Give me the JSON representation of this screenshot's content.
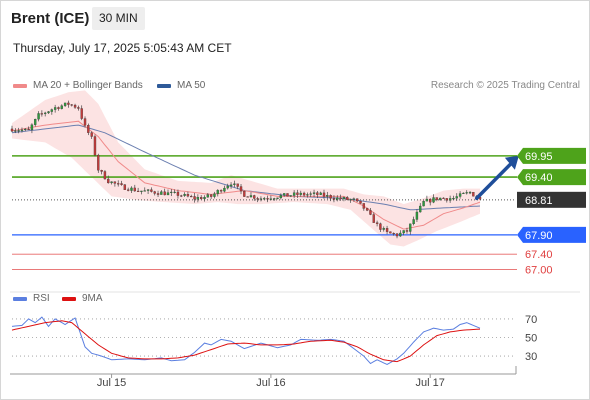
{
  "header": {
    "symbol": "Brent (ICE)",
    "timeframe": "30 MIN",
    "timestamp": "Thursday, July 17, 2025 5:05:43 AM CET"
  },
  "legend": [
    {
      "label": "MA 20 + Bollinger Bands",
      "color": "#f08a8a"
    },
    {
      "label": "MA 50",
      "color": "#2e5a99"
    }
  ],
  "credit": "Research © 2025 Trading Central",
  "chart_data": [
    {
      "type": "candlestick",
      "ylim": [
        66.6,
        71.4
      ],
      "x_ticks": [
        {
          "label": "Jul 15",
          "index": 30
        },
        {
          "label": "Jul 16",
          "index": 78
        },
        {
          "label": "Jul 17",
          "index": 126
        }
      ],
      "levels": [
        {
          "value": 69.95,
          "label": "69.95",
          "color": "#4ea31b",
          "kind": "resistance"
        },
        {
          "value": 69.4,
          "label": "69.40",
          "color": "#4ea31b",
          "kind": "resistance"
        },
        {
          "value": 68.81,
          "label": "68.81",
          "color": "#333333",
          "kind": "last"
        },
        {
          "value": 67.9,
          "label": "67.90",
          "color": "#2962ff",
          "kind": "support"
        },
        {
          "value": 67.4,
          "label": "67.40",
          "color": "#e04040",
          "kind": "support"
        },
        {
          "value": 67.0,
          "label": "67.00",
          "color": "#e04040",
          "kind": "support"
        }
      ],
      "arrow": {
        "from_index": 140,
        "from_value": 68.85,
        "to_index": 150,
        "to_value": 69.85,
        "color": "#1f4e9a"
      },
      "close_anchors": [
        [
          0,
          70.65
        ],
        [
          5,
          70.6
        ],
        [
          8,
          71.0
        ],
        [
          13,
          71.2
        ],
        [
          17,
          71.3
        ],
        [
          20,
          71.2
        ],
        [
          22,
          70.7
        ],
        [
          24,
          70.4
        ],
        [
          26,
          69.6
        ],
        [
          29,
          69.3
        ],
        [
          33,
          69.15
        ],
        [
          38,
          69.05
        ],
        [
          44,
          69.0
        ],
        [
          50,
          68.95
        ],
        [
          55,
          68.85
        ],
        [
          60,
          68.9
        ],
        [
          64,
          69.15
        ],
        [
          66,
          69.25
        ],
        [
          70,
          68.95
        ],
        [
          75,
          68.85
        ],
        [
          80,
          68.9
        ],
        [
          86,
          68.95
        ],
        [
          92,
          68.95
        ],
        [
          98,
          68.85
        ],
        [
          103,
          68.8
        ],
        [
          106,
          68.6
        ],
        [
          110,
          68.15
        ],
        [
          113,
          67.95
        ],
        [
          116,
          67.9
        ],
        [
          119,
          68.0
        ],
        [
          121,
          68.3
        ],
        [
          124,
          68.75
        ],
        [
          128,
          68.85
        ],
        [
          133,
          68.85
        ],
        [
          136,
          68.95
        ],
        [
          138,
          69.0
        ],
        [
          140,
          68.9
        ],
        [
          141,
          68.81
        ]
      ],
      "ma20_anchors": [
        [
          0,
          70.6
        ],
        [
          10,
          70.75
        ],
        [
          20,
          70.85
        ],
        [
          26,
          70.45
        ],
        [
          32,
          69.8
        ],
        [
          40,
          69.25
        ],
        [
          50,
          69.05
        ],
        [
          60,
          68.95
        ],
        [
          70,
          69.05
        ],
        [
          80,
          68.9
        ],
        [
          90,
          68.9
        ],
        [
          100,
          68.9
        ],
        [
          106,
          68.65
        ],
        [
          112,
          68.3
        ],
        [
          118,
          68.05
        ],
        [
          124,
          68.15
        ],
        [
          130,
          68.45
        ],
        [
          136,
          68.6
        ],
        [
          141,
          68.75
        ]
      ],
      "ma50_anchors": [
        [
          0,
          70.55
        ],
        [
          10,
          70.65
        ],
        [
          20,
          70.75
        ],
        [
          28,
          70.55
        ],
        [
          40,
          70.05
        ],
        [
          55,
          69.45
        ],
        [
          70,
          69.05
        ],
        [
          85,
          68.9
        ],
        [
          100,
          68.85
        ],
        [
          112,
          68.7
        ],
        [
          120,
          68.55
        ],
        [
          130,
          68.6
        ],
        [
          141,
          68.65
        ]
      ],
      "band_upper": [
        [
          0,
          70.8
        ],
        [
          10,
          71.4
        ],
        [
          17,
          71.6
        ],
        [
          22,
          71.65
        ],
        [
          26,
          71.3
        ],
        [
          32,
          70.3
        ],
        [
          40,
          69.6
        ],
        [
          50,
          69.3
        ],
        [
          60,
          69.25
        ],
        [
          66,
          69.45
        ],
        [
          72,
          69.3
        ],
        [
          80,
          69.1
        ],
        [
          90,
          69.1
        ],
        [
          100,
          69.1
        ],
        [
          106,
          68.95
        ],
        [
          112,
          68.9
        ],
        [
          118,
          68.7
        ],
        [
          124,
          68.85
        ],
        [
          130,
          69.05
        ],
        [
          136,
          69.1
        ],
        [
          141,
          69.1
        ]
      ],
      "band_lower": [
        [
          0,
          70.4
        ],
        [
          10,
          70.3
        ],
        [
          18,
          69.9
        ],
        [
          24,
          69.4
        ],
        [
          30,
          68.9
        ],
        [
          38,
          68.8
        ],
        [
          46,
          68.75
        ],
        [
          55,
          68.7
        ],
        [
          62,
          68.75
        ],
        [
          68,
          68.7
        ],
        [
          75,
          68.7
        ],
        [
          85,
          68.75
        ],
        [
          95,
          68.7
        ],
        [
          102,
          68.55
        ],
        [
          108,
          68.1
        ],
        [
          114,
          67.65
        ],
        [
          118,
          67.6
        ],
        [
          122,
          67.75
        ],
        [
          128,
          68.0
        ],
        [
          134,
          68.2
        ],
        [
          141,
          68.45
        ]
      ]
    },
    {
      "type": "line",
      "name": "RSI",
      "ylim": [
        15,
        85
      ],
      "y_ticks": [
        70,
        50,
        30
      ],
      "series": [
        {
          "name": "RSI",
          "color": "#5b7fe0",
          "anchors": [
            [
              0,
              62
            ],
            [
              3,
              63
            ],
            [
              5,
              70
            ],
            [
              7,
              66
            ],
            [
              9,
              72
            ],
            [
              11,
              62
            ],
            [
              13,
              70
            ],
            [
              16,
              64
            ],
            [
              19,
              71
            ],
            [
              22,
              40
            ],
            [
              24,
              33
            ],
            [
              27,
              30
            ],
            [
              30,
              26
            ],
            [
              35,
              27
            ],
            [
              40,
              26
            ],
            [
              45,
              28
            ],
            [
              48,
              25
            ],
            [
              52,
              26
            ],
            [
              55,
              34
            ],
            [
              58,
              44
            ],
            [
              60,
              42
            ],
            [
              63,
              48
            ],
            [
              66,
              46
            ],
            [
              70,
              38
            ],
            [
              75,
              44
            ],
            [
              80,
              39
            ],
            [
              84,
              42
            ],
            [
              87,
              48
            ],
            [
              92,
              47
            ],
            [
              96,
              48
            ],
            [
              100,
              46
            ],
            [
              103,
              38
            ],
            [
              106,
              30
            ],
            [
              108,
              22
            ],
            [
              110,
              26
            ],
            [
              113,
              21
            ],
            [
              116,
              27
            ],
            [
              118,
              33
            ],
            [
              121,
              45
            ],
            [
              124,
              56
            ],
            [
              127,
              60
            ],
            [
              130,
              58
            ],
            [
              133,
              59
            ],
            [
              135,
              64
            ],
            [
              137,
              66
            ],
            [
              139,
              63
            ],
            [
              141,
              60
            ]
          ]
        },
        {
          "name": "9MA",
          "color": "#dd1111",
          "anchors": [
            [
              0,
              58
            ],
            [
              5,
              62
            ],
            [
              10,
              66
            ],
            [
              15,
              68
            ],
            [
              18,
              66
            ],
            [
              22,
              54
            ],
            [
              26,
              42
            ],
            [
              30,
              33
            ],
            [
              35,
              28
            ],
            [
              40,
              27
            ],
            [
              45,
              27
            ],
            [
              50,
              28
            ],
            [
              55,
              31
            ],
            [
              60,
              37
            ],
            [
              65,
              43
            ],
            [
              70,
              44
            ],
            [
              75,
              42
            ],
            [
              80,
              42
            ],
            [
              85,
              43
            ],
            [
              90,
              46
            ],
            [
              96,
              47
            ],
            [
              100,
              45
            ],
            [
              104,
              40
            ],
            [
              108,
              32
            ],
            [
              112,
              26
            ],
            [
              116,
              24
            ],
            [
              120,
              30
            ],
            [
              124,
              42
            ],
            [
              128,
              52
            ],
            [
              132,
              56
            ],
            [
              136,
              58
            ],
            [
              141,
              59
            ]
          ]
        }
      ]
    }
  ],
  "rsi_legend": [
    {
      "label": "RSI",
      "color": "#5b7fe0"
    },
    {
      "label": "9MA",
      "color": "#dd1111"
    }
  ]
}
